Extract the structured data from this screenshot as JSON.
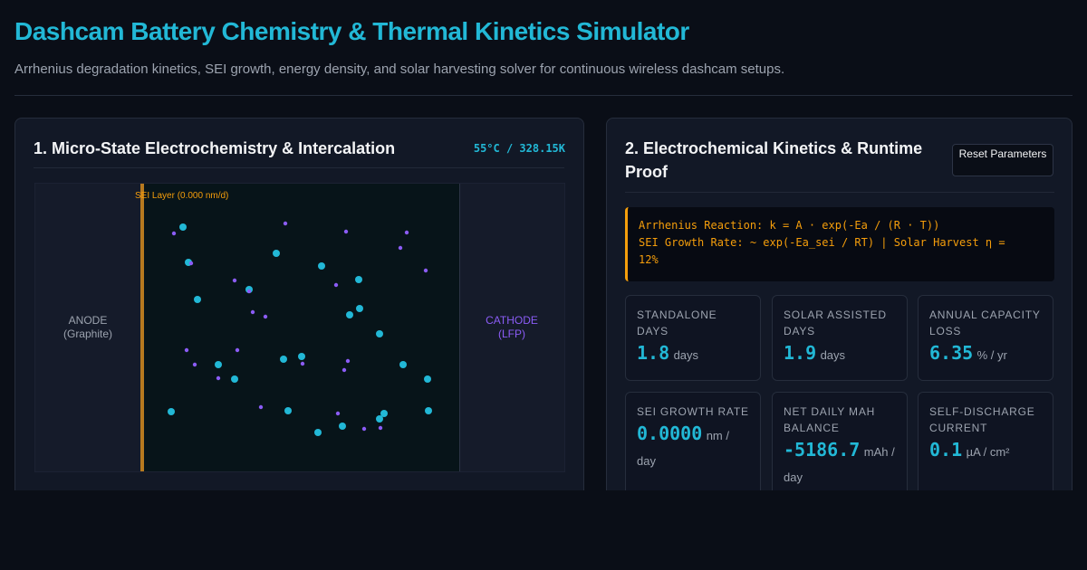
{
  "header": {
    "title": "Dashcam Battery Chemistry & Thermal Kinetics Simulator",
    "subtitle": "Arrhenius degradation kinetics, SEI growth, energy density, and solar harvesting solver for continuous wireless dashcam setups."
  },
  "micro_panel": {
    "title": "1. Micro-State Electrochemistry & Intercalation",
    "temperature": "55°C / 328.15K",
    "sei_label": "SEI Layer (0.000 nm/d)",
    "anode_label": [
      "ANODE",
      "(Graphite)"
    ],
    "cathode_label": [
      "CATHODE",
      "(LFP)"
    ],
    "colors": {
      "ion": "#22b8d6",
      "electron": "#8b5cf6",
      "sei": "#b7791f"
    }
  },
  "kinetics_panel": {
    "title": "2. Electrochemical Kinetics & Runtime Proof",
    "reset_label": "Reset Parameters",
    "formula_lines": [
      "Arrhenius Reaction: k = A · exp(-Ea / (R · T))",
      "SEI Growth Rate: ~ exp(-Ea_sei / RT) | Solar Harvest η =",
      "12%"
    ],
    "metrics": [
      {
        "label": "Standalone Days",
        "value": "1.8",
        "unit": "days"
      },
      {
        "label": "Solar Assisted Days",
        "value": "1.9",
        "unit": "days"
      },
      {
        "label": "Annual Capacity Loss",
        "value": "6.35",
        "unit": "% / yr"
      },
      {
        "label": "SEI Growth Rate",
        "value": "0.0000",
        "unit": "nm / day"
      },
      {
        "label": "Net Daily mAh Balance",
        "value": "-5186.7",
        "unit": "mAh / day"
      },
      {
        "label": "Self-Discharge Current",
        "value": "0.1",
        "unit": "µA / cm²"
      }
    ]
  }
}
